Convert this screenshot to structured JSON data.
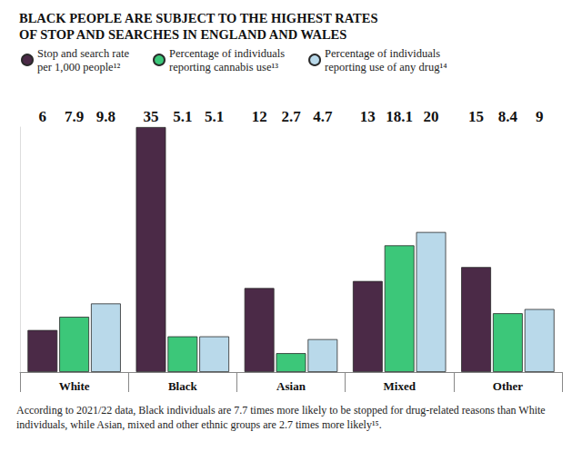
{
  "chart_data": {
    "type": "bar",
    "title": "BLACK PEOPLE ARE SUBJECT TO THE HIGHEST RATES\nOF STOP AND SEARCHES IN ENGLAND AND WALES",
    "categories": [
      "White",
      "Black",
      "Asian",
      "Mixed",
      "Other"
    ],
    "series": [
      {
        "name": "Stop and search rate\nper 1,000 people¹²",
        "color": "#4b2a47",
        "values": [
          6,
          35,
          12,
          13,
          15
        ]
      },
      {
        "name": "Percentage of individuals\nreporting cannabis use¹³",
        "color": "#3cc779",
        "values": [
          7.9,
          5.1,
          2.7,
          18.1,
          8.4
        ]
      },
      {
        "name": "Percentage of individuals\nreporting use of any drug¹⁴",
        "color": "#b9d9ea",
        "values": [
          9.8,
          5.1,
          4.7,
          20,
          9
        ]
      }
    ],
    "ylim": [
      0,
      35
    ],
    "grid": false,
    "legend": "top-left",
    "data_labels": true,
    "tick_labels": "x",
    "annotations": [
      "According to 2021/22 data, Black individuals are 7.7 times more likely to be stopped for drug-related reasons than White individuals, while Asian, mixed and other ethnic groups are 2.7 times more likely¹⁵."
    ]
  }
}
